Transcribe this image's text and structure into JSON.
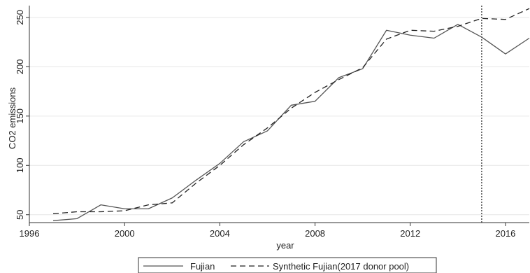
{
  "chart_data": {
    "type": "line",
    "xlabel": "year",
    "ylabel": "CO2 emissions",
    "xlim": [
      1996,
      2017
    ],
    "ylim": [
      42,
      262
    ],
    "xticks": [
      1996,
      2000,
      2004,
      2008,
      2012,
      2016
    ],
    "yticks": [
      50,
      100,
      150,
      200,
      250
    ],
    "grid": "horizontal",
    "legend": "bottom",
    "reference_line": {
      "x": 2015,
      "style": "dotted"
    },
    "series": [
      {
        "name": "Fujian",
        "style": "solid",
        "color": "#555555",
        "x": [
          1997,
          1998,
          1999,
          2000,
          2001,
          2002,
          2003,
          2004,
          2005,
          2006,
          2007,
          2008,
          2009,
          2010,
          2011,
          2012,
          2013,
          2014,
          2015,
          2016,
          2017
        ],
        "values": [
          44,
          46,
          60,
          56,
          56,
          67,
          85,
          102,
          124,
          135,
          161,
          165,
          189,
          198,
          237,
          232,
          229,
          243,
          230,
          213,
          229
        ]
      },
      {
        "name": "Synthetic Fujian(2017 donor pool)",
        "style": "dashed",
        "color": "#222222",
        "x": [
          1997,
          1998,
          1999,
          2000,
          2001,
          2002,
          2003,
          2004,
          2005,
          2006,
          2007,
          2008,
          2009,
          2010,
          2011,
          2012,
          2013,
          2014,
          2015,
          2016,
          2017
        ],
        "values": [
          51,
          53,
          53,
          54,
          60,
          62,
          82,
          100,
          121,
          138,
          158,
          174,
          187,
          199,
          228,
          237,
          236,
          241,
          249,
          248,
          259
        ]
      }
    ]
  }
}
